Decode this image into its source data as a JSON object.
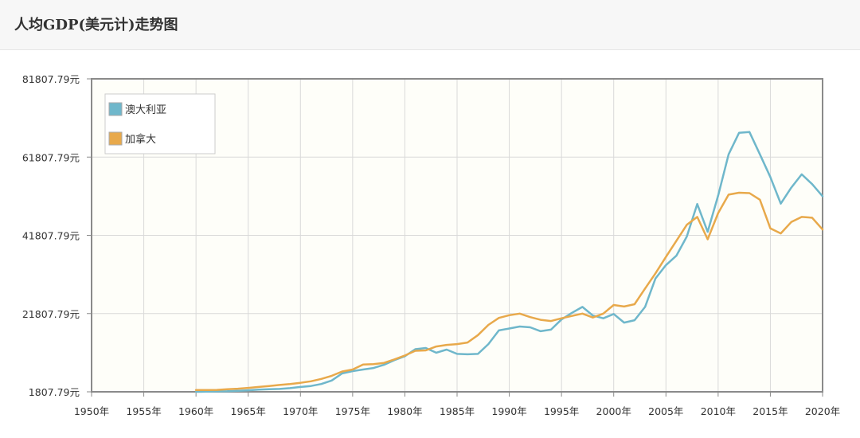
{
  "header": {
    "title": "人均GDP(美元计)走势图"
  },
  "colors": {
    "australia": "#6fb7cb",
    "canada": "#e8a94b",
    "plot_bg": "#fefef9",
    "grid": "#d9d9d9",
    "frame": "#8a8a8a"
  },
  "chart_data": {
    "type": "line",
    "title": "人均GDP(美元计)走势图",
    "xlim": [
      1950,
      2020
    ],
    "ylim": [
      1807.79,
      81807.79
    ],
    "x_ticks": [
      {
        "value": 1950,
        "label": "1950年"
      },
      {
        "value": 1955,
        "label": "1955年"
      },
      {
        "value": 1960,
        "label": "1960年"
      },
      {
        "value": 1965,
        "label": "1965年"
      },
      {
        "value": 1970,
        "label": "1970年"
      },
      {
        "value": 1975,
        "label": "1975年"
      },
      {
        "value": 1980,
        "label": "1980年"
      },
      {
        "value": 1985,
        "label": "1985年"
      },
      {
        "value": 1990,
        "label": "1990年"
      },
      {
        "value": 1995,
        "label": "1995年"
      },
      {
        "value": 2000,
        "label": "2000年"
      },
      {
        "value": 2005,
        "label": "2005年"
      },
      {
        "value": 2010,
        "label": "2010年"
      },
      {
        "value": 2015,
        "label": "2015年"
      },
      {
        "value": 2020,
        "label": "2020年"
      }
    ],
    "y_ticks": [
      {
        "value": 1807.79,
        "label": "1807.79元"
      },
      {
        "value": 21807.79,
        "label": "21807.79元"
      },
      {
        "value": 41807.79,
        "label": "41807.79元"
      },
      {
        "value": 61807.79,
        "label": "61807.79元"
      },
      {
        "value": 81807.79,
        "label": "81807.79元"
      }
    ],
    "grid": true,
    "legend_position": "top-left",
    "x": [
      1960,
      1961,
      1962,
      1963,
      1964,
      1965,
      1966,
      1967,
      1968,
      1969,
      1970,
      1971,
      1972,
      1973,
      1974,
      1975,
      1976,
      1977,
      1978,
      1979,
      1980,
      1981,
      1982,
      1983,
      1984,
      1985,
      1986,
      1987,
      1988,
      1989,
      1990,
      1991,
      1992,
      1993,
      1994,
      1995,
      1996,
      1997,
      1998,
      1999,
      2000,
      2001,
      2002,
      2003,
      2004,
      2005,
      2006,
      2007,
      2008,
      2009,
      2010,
      2011,
      2012,
      2013,
      2014,
      2015,
      2016,
      2017,
      2018,
      2019,
      2020
    ],
    "series": [
      {
        "name": "澳大利亚",
        "color_key": "australia",
        "values": [
          1800,
          1850,
          1900,
          1950,
          2050,
          2200,
          2350,
          2450,
          2550,
          2750,
          3050,
          3300,
          3800,
          4700,
          6500,
          7100,
          7500,
          7900,
          8700,
          9900,
          10900,
          12700,
          13000,
          11800,
          12600,
          11500,
          11400,
          11500,
          14000,
          17500,
          18000,
          18500,
          18300,
          17300,
          17700,
          20300,
          22000,
          23500,
          21300,
          20600,
          21700,
          19500,
          20100,
          23500,
          30800,
          34200,
          36600,
          41500,
          49800,
          42700,
          52000,
          62500,
          68000,
          68200,
          62500,
          56700,
          49900,
          54000,
          57400,
          54900,
          51800
        ]
      },
      {
        "name": "加拿大",
        "color_key": "canada",
        "values": [
          2250,
          2250,
          2300,
          2450,
          2600,
          2800,
          3050,
          3300,
          3550,
          3800,
          4100,
          4500,
          5100,
          5900,
          7000,
          7500,
          8800,
          8900,
          9200,
          10100,
          11100,
          12300,
          12400,
          13400,
          13800,
          14000,
          14400,
          16300,
          18900,
          20700,
          21400,
          21800,
          20900,
          20200,
          19900,
          20600,
          21200,
          21800,
          20800,
          21800,
          24000,
          23600,
          24200,
          28200,
          32100,
          36300,
          40400,
          44500,
          46500,
          40800,
          47500,
          52200,
          52700,
          52600,
          50900,
          43600,
          42300,
          45200,
          46500,
          46300,
          43300
        ]
      }
    ]
  }
}
